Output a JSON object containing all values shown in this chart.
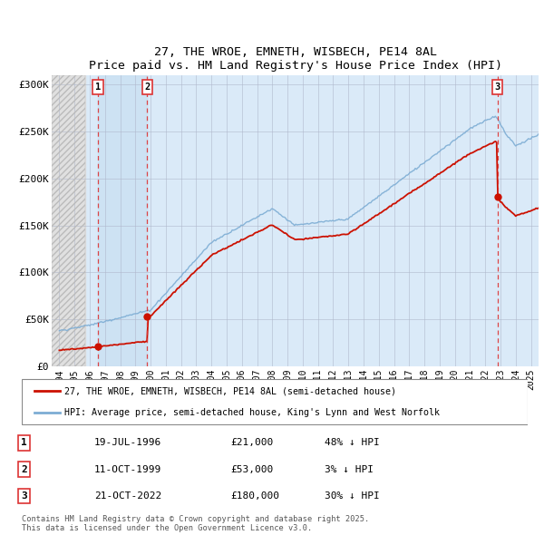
{
  "title": "27, THE WROE, EMNETH, WISBECH, PE14 8AL",
  "subtitle": "Price paid vs. HM Land Registry's House Price Index (HPI)",
  "legend_line1": "27, THE WROE, EMNETH, WISBECH, PE14 8AL (semi-detached house)",
  "legend_line2": "HPI: Average price, semi-detached house, King's Lynn and West Norfolk",
  "footnote": "Contains HM Land Registry data © Crown copyright and database right 2025.\nThis data is licensed under the Open Government Licence v3.0.",
  "transactions": [
    {
      "num": 1,
      "date": "19-JUL-1996",
      "price": "£21,000",
      "hpi": "48% ↓ HPI",
      "x": 1996.54,
      "price_val": 21000
    },
    {
      "num": 2,
      "date": "11-OCT-1999",
      "price": "£53,000",
      "hpi": "3% ↓ HPI",
      "x": 1999.78,
      "price_val": 53000
    },
    {
      "num": 3,
      "date": "21-OCT-2022",
      "price": "£180,000",
      "hpi": "30% ↓ HPI",
      "x": 2022.8,
      "price_val": 180000
    }
  ],
  "ylim": [
    0,
    310000
  ],
  "xlim": [
    1993.5,
    2025.5
  ],
  "yticks": [
    0,
    50000,
    100000,
    150000,
    200000,
    250000,
    300000
  ],
  "ytick_labels": [
    "£0",
    "£50K",
    "£100K",
    "£150K",
    "£200K",
    "£250K",
    "£300K"
  ],
  "xticks": [
    1994,
    1995,
    1996,
    1997,
    1998,
    1999,
    2000,
    2001,
    2002,
    2003,
    2004,
    2005,
    2006,
    2007,
    2008,
    2009,
    2010,
    2011,
    2012,
    2013,
    2014,
    2015,
    2016,
    2017,
    2018,
    2019,
    2020,
    2021,
    2022,
    2023,
    2024,
    2025
  ],
  "hpi_color": "#7dadd4",
  "price_color": "#cc1100",
  "dashed_line_color": "#dd3333",
  "shaded_region_color": "#daeaf8",
  "background_color": "#ffffff",
  "hatch_color": "#d8d8d8"
}
